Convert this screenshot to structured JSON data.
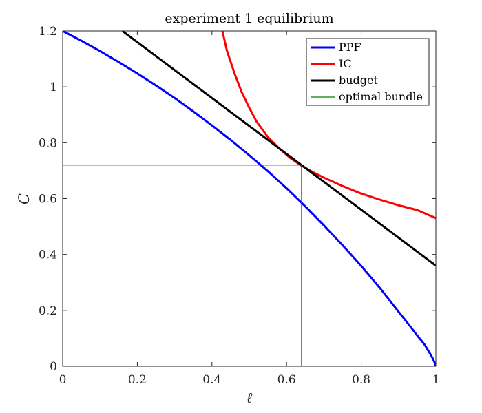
{
  "chart_data": {
    "type": "line",
    "title": "experiment 1 equilibrium",
    "xlabel": "ℓ",
    "ylabel": "C",
    "xlim": [
      0,
      1
    ],
    "ylim": [
      0,
      1.2
    ],
    "xticks": [
      0,
      0.2,
      0.4,
      0.6,
      0.8,
      1
    ],
    "xtick_labels": [
      "0",
      "0.2",
      "0.4",
      "0.6",
      "0.8",
      "1"
    ],
    "yticks": [
      0,
      0.2,
      0.4,
      0.6,
      0.8,
      1,
      1.2
    ],
    "ytick_labels": [
      "0",
      "0.2",
      "0.4",
      "0.6",
      "0.8",
      "1",
      "1.2"
    ],
    "grid": false,
    "legend_position": "top-right",
    "series": [
      {
        "name": "PPF",
        "color": "#0000ff",
        "x": [
          0,
          0.05,
          0.1,
          0.15,
          0.2,
          0.25,
          0.3,
          0.35,
          0.4,
          0.45,
          0.5,
          0.55,
          0.6,
          0.65,
          0.7,
          0.75,
          0.8,
          0.85,
          0.9,
          0.93,
          0.95,
          0.97,
          0.98,
          0.99,
          0.995,
          1
        ],
        "y": [
          1.2,
          1.165,
          1.128,
          1.089,
          1.048,
          1.005,
          0.96,
          0.912,
          0.862,
          0.81,
          0.755,
          0.698,
          0.637,
          0.572,
          0.504,
          0.433,
          0.359,
          0.28,
          0.195,
          0.145,
          0.11,
          0.077,
          0.055,
          0.032,
          0.018,
          0
        ]
      },
      {
        "name": "IC",
        "color": "#ff0000",
        "x": [
          0.428,
          0.44,
          0.46,
          0.48,
          0.5,
          0.52,
          0.55,
          0.58,
          0.61,
          0.64,
          0.67,
          0.7,
          0.75,
          0.8,
          0.85,
          0.9,
          0.95,
          1
        ],
        "y": [
          1.2,
          1.13,
          1.05,
          0.98,
          0.925,
          0.875,
          0.82,
          0.78,
          0.745,
          0.718,
          0.695,
          0.675,
          0.645,
          0.618,
          0.596,
          0.576,
          0.559,
          0.53
        ]
      },
      {
        "name": "budget",
        "color": "#000000",
        "x": [
          0.16,
          1
        ],
        "y": [
          1.2,
          0.36
        ]
      },
      {
        "name": "optimal bundle",
        "color": "#008000",
        "x": [
          0,
          0.64,
          0.64
        ],
        "y": [
          0.72,
          0.72,
          0
        ]
      }
    ]
  }
}
